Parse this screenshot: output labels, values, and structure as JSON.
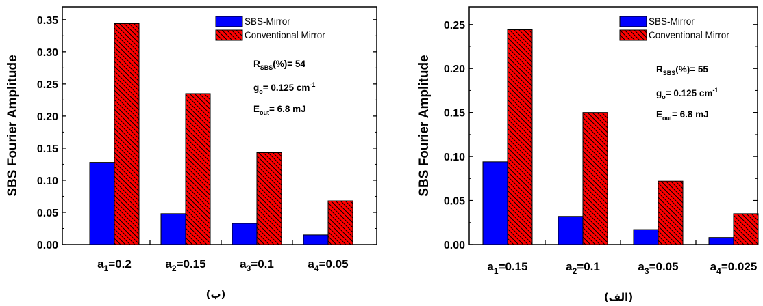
{
  "chart_data": [
    {
      "type": "bar",
      "panel_label": "(ب)",
      "ylabel": "SBS  Fourier Amplitude",
      "ylim": [
        0,
        0.37
      ],
      "yticks": [
        "0.00",
        "0.05",
        "0.10",
        "0.15",
        "0.20",
        "0.25",
        "0.30",
        "0.35"
      ],
      "categories": [
        {
          "var": "a",
          "sub": "1",
          "eq": "=0.2"
        },
        {
          "var": "a",
          "sub": "2",
          "eq": "=0.15"
        },
        {
          "var": "a",
          "sub": "3",
          "eq": "=0.1"
        },
        {
          "var": "a",
          "sub": "4",
          "eq": "=0.05"
        }
      ],
      "series": [
        {
          "name": "SBS-Mirror",
          "color": "#0000ff",
          "pattern": "solid",
          "values": [
            0.128,
            0.048,
            0.033,
            0.015
          ]
        },
        {
          "name": "Conventional Mirror",
          "color": "#ff0000",
          "pattern": "hatched",
          "values": [
            0.344,
            0.235,
            0.143,
            0.068
          ]
        }
      ],
      "annotations": {
        "r_main": "R",
        "r_sub": "SBS",
        "r_rest": "(%)= 54",
        "g_main": "g",
        "g_sub": "o",
        "g_rest": "= 0.125 cm",
        "g_sup": "-1",
        "e_main": "E",
        "e_sub": "out",
        "e_rest": "= 6.8 mJ"
      }
    },
    {
      "type": "bar",
      "panel_label": "(الف)",
      "ylabel": "SBS  Fourier Amplitude",
      "ylim": [
        0,
        0.27
      ],
      "yticks": [
        "0.00",
        "0.05",
        "0.10",
        "0.15",
        "0.20",
        "0.25"
      ],
      "categories": [
        {
          "var": "a",
          "sub": "1",
          "eq": "=0.15"
        },
        {
          "var": "a",
          "sub": "2",
          "eq": "=0.1"
        },
        {
          "var": "a",
          "sub": "3",
          "eq": "=0.05"
        },
        {
          "var": "a",
          "sub": "4",
          "eq": "=0.025"
        }
      ],
      "series": [
        {
          "name": "SBS-Mirror",
          "color": "#0000ff",
          "pattern": "solid",
          "values": [
            0.094,
            0.032,
            0.017,
            0.008
          ]
        },
        {
          "name": "Conventional Mirror",
          "color": "#ff0000",
          "pattern": "hatched",
          "values": [
            0.244,
            0.15,
            0.072,
            0.035
          ]
        }
      ],
      "annotations": {
        "r_main": "R",
        "r_sub": "SBS",
        "r_rest": "(%)= 55",
        "g_main": "g",
        "g_sub": "o",
        "g_rest": "= 0.125 cm",
        "g_sup": "-1",
        "e_main": "E",
        "e_sub": "out",
        "e_rest": "= 6.8 mJ"
      }
    }
  ]
}
